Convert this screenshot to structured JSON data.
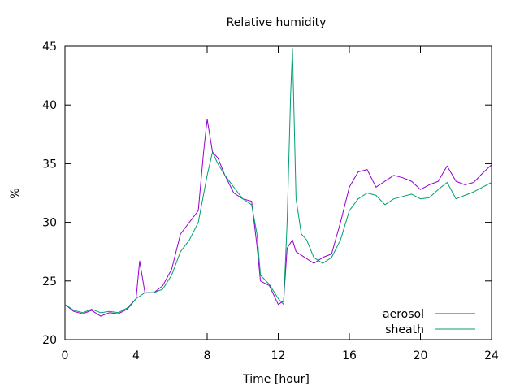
{
  "chart_data": {
    "type": "line",
    "title": "Relative humidity",
    "xlabel": "Time [hour]",
    "ylabel": "%",
    "xlim": [
      0,
      24
    ],
    "ylim": [
      20,
      45
    ],
    "xticks": [
      0,
      4,
      8,
      12,
      16,
      20,
      24
    ],
    "yticks": [
      20,
      25,
      30,
      35,
      40,
      45
    ],
    "grid": false,
    "legend_position": "bottom-right",
    "series": [
      {
        "name": "aerosol",
        "color": "#9400d3",
        "x": [
          0,
          0.5,
          1,
          1.5,
          2,
          2.5,
          3,
          3.5,
          4,
          4.2,
          4.5,
          5,
          5.5,
          6,
          6.5,
          7,
          7.5,
          7.8,
          8,
          8.3,
          8.6,
          9,
          9.5,
          10,
          10.5,
          10.8,
          11,
          11.5,
          12,
          12.3,
          12.5,
          12.8,
          13,
          13.5,
          14,
          14.5,
          15,
          15.5,
          16,
          16.5,
          17,
          17.5,
          18,
          18.5,
          19,
          19.5,
          20,
          20.5,
          21,
          21.5,
          22,
          22.5,
          23,
          23.5,
          24
        ],
        "values": [
          23,
          22.4,
          22.2,
          22.5,
          22,
          22.3,
          22.2,
          22.6,
          23.5,
          26.7,
          24,
          24,
          24.6,
          26,
          29,
          30,
          31,
          36,
          38.8,
          36,
          35.5,
          34,
          32.5,
          32,
          31.8,
          28,
          25,
          24.6,
          23,
          23.3,
          27.8,
          28.5,
          27.5,
          27,
          26.5,
          27,
          27.3,
          30,
          33,
          34.3,
          34.5,
          33,
          33.5,
          34,
          33.8,
          33.5,
          32.8,
          33.2,
          33.5,
          34.8,
          33.5,
          33.2,
          33.4,
          34.2,
          34.9
        ]
      },
      {
        "name": "sheath",
        "color": "#009e73",
        "x": [
          0,
          0.5,
          1,
          1.5,
          2,
          2.5,
          3,
          3.5,
          4,
          4.5,
          5,
          5.5,
          6,
          6.5,
          7,
          7.5,
          8,
          8.3,
          8.6,
          9,
          9.5,
          10,
          10.5,
          10.8,
          11,
          11.5,
          12,
          12.3,
          12.5,
          12.7,
          12.8,
          13,
          13.3,
          13.6,
          14,
          14.5,
          15,
          15.5,
          16,
          16.5,
          17,
          17.5,
          18,
          18.5,
          19,
          19.5,
          20,
          20.5,
          21,
          21.5,
          22,
          22.5,
          23,
          23.5,
          24
        ],
        "values": [
          23,
          22.5,
          22.3,
          22.6,
          22.3,
          22.4,
          22.3,
          22.7,
          23.5,
          24,
          24,
          24.3,
          25.5,
          27.5,
          28.5,
          30,
          34,
          36,
          35,
          34,
          33,
          32,
          31.5,
          29,
          25.5,
          24.7,
          23.5,
          23,
          30,
          41,
          44.8,
          32,
          29,
          28.5,
          27,
          26.5,
          27,
          28.5,
          31,
          32,
          32.5,
          32.3,
          31.5,
          32,
          32.2,
          32.4,
          32,
          32.1,
          32.8,
          33.4,
          32,
          32.3,
          32.6,
          33,
          33.4
        ]
      }
    ]
  }
}
